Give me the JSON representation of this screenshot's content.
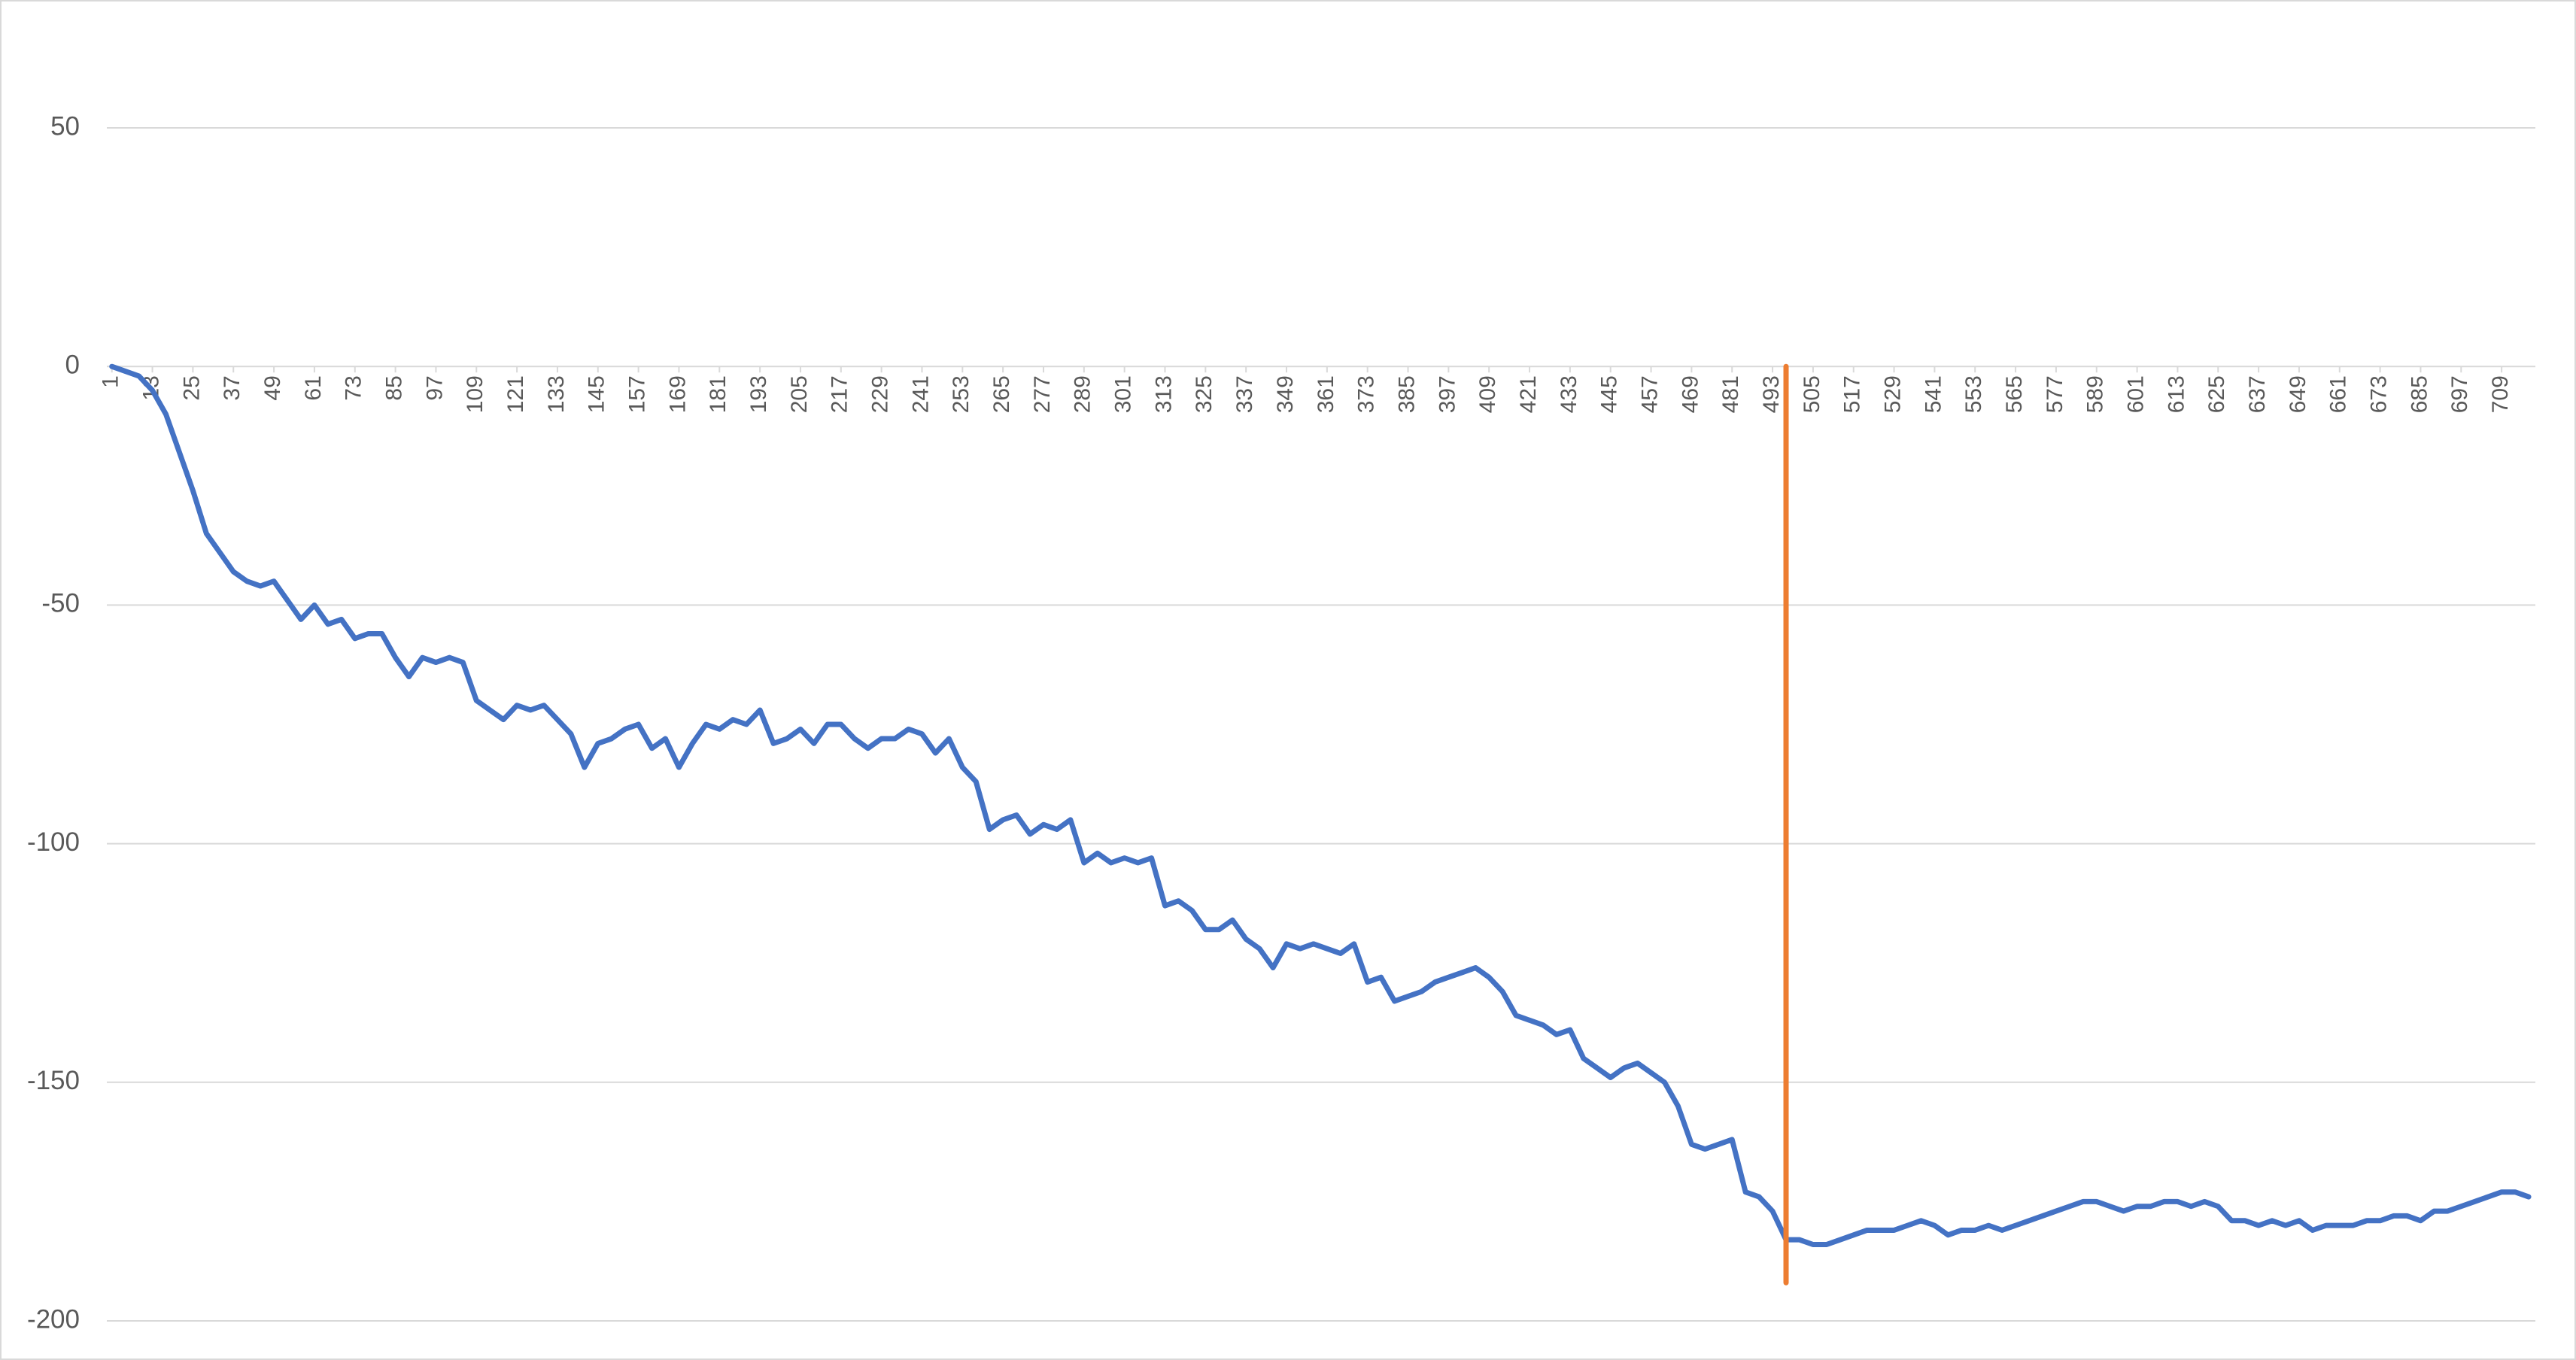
{
  "chart_data": {
    "type": "line",
    "xlim": [
      -0.5,
      719
    ],
    "xticks": [
      1,
      13,
      25,
      37,
      49,
      61,
      73,
      85,
      97,
      109,
      121,
      133,
      145,
      157,
      169,
      181,
      193,
      205,
      217,
      229,
      241,
      253,
      265,
      277,
      289,
      301,
      313,
      325,
      337,
      349,
      361,
      373,
      385,
      397,
      409,
      421,
      433,
      445,
      457,
      469,
      481,
      493,
      505,
      517,
      529,
      541,
      553,
      565,
      577,
      589,
      601,
      613,
      625,
      637,
      649,
      661,
      673,
      685,
      697,
      709
    ],
    "ylim": [
      -200,
      50
    ],
    "yticks": [
      -200,
      -150,
      -100,
      -50,
      0,
      50
    ],
    "grid": true,
    "series": [
      {
        "color": "#4472c4",
        "x": [
          1,
          5,
          9,
          13,
          17,
          21,
          25,
          29,
          33,
          37,
          41,
          45,
          49,
          53,
          57,
          61,
          65,
          69,
          73,
          77,
          81,
          85,
          89,
          93,
          97,
          101,
          105,
          109,
          113,
          117,
          121,
          125,
          129,
          133,
          137,
          141,
          145,
          149,
          153,
          157,
          161,
          165,
          169,
          173,
          177,
          181,
          185,
          189,
          193,
          197,
          201,
          205,
          209,
          213,
          217,
          221,
          225,
          229,
          233,
          237,
          241,
          245,
          249,
          253,
          257,
          261,
          265,
          269,
          273,
          277,
          281,
          285,
          289,
          293,
          297,
          301,
          305,
          309,
          313,
          317,
          321,
          325,
          329,
          333,
          337,
          341,
          345,
          349,
          353,
          357,
          361,
          365,
          369,
          373,
          377,
          381,
          385,
          389,
          393,
          397,
          401,
          405,
          409,
          413,
          417,
          421,
          425,
          429,
          433,
          437,
          441,
          445,
          449,
          453,
          457,
          461,
          465,
          469,
          473,
          477,
          481,
          485,
          489,
          493,
          497,
          501,
          505,
          509,
          513,
          517,
          521,
          525,
          529,
          533,
          537,
          541,
          545,
          549,
          553,
          557,
          561,
          565,
          569,
          573,
          577,
          581,
          585,
          589,
          593,
          597,
          601,
          605,
          609,
          613,
          617,
          621,
          625,
          629,
          633,
          637,
          641,
          645,
          649,
          653,
          657,
          661,
          665,
          669,
          673,
          677,
          681,
          685,
          689,
          693,
          697,
          701,
          705,
          709,
          713,
          717
        ],
        "values": [
          0,
          -1,
          -2,
          -5,
          -10,
          -18,
          -26,
          -35,
          -39,
          -43,
          -45,
          -46,
          -45,
          -49,
          -53,
          -50,
          -54,
          -53,
          -57,
          -56,
          -56,
          -61,
          -65,
          -61,
          -62,
          -61,
          -62,
          -70,
          -72,
          -74,
          -71,
          -72,
          -71,
          -74,
          -77,
          -84,
          -79,
          -78,
          -76,
          -75,
          -80,
          -78,
          -84,
          -79,
          -75,
          -76,
          -74,
          -75,
          -72,
          -79,
          -78,
          -76,
          -79,
          -75,
          -75,
          -78,
          -80,
          -78,
          -78,
          -76,
          -77,
          -81,
          -78,
          -84,
          -87,
          -97,
          -95,
          -94,
          -98,
          -96,
          -97,
          -95,
          -104,
          -102,
          -104,
          -103,
          -104,
          -103,
          -113,
          -112,
          -114,
          -118,
          -118,
          -116,
          -120,
          -122,
          -126,
          -121,
          -122,
          -121,
          -122,
          -123,
          -121,
          -129,
          -128,
          -133,
          -132,
          -131,
          -129,
          -128,
          -127,
          -126,
          -128,
          -131,
          -136,
          -137,
          -138,
          -140,
          -139,
          -145,
          -147,
          -149,
          -147,
          -146,
          -148,
          -150,
          -155,
          -163,
          -164,
          -163,
          -162,
          -173,
          -174,
          -177,
          -183,
          -183,
          -184,
          -184,
          -183,
          -182,
          -181,
          -181,
          -181,
          -180,
          -179,
          -180,
          -182,
          -181,
          -181,
          -180,
          -181,
          -180,
          -179,
          -178,
          -177,
          -176,
          -175,
          -175,
          -176,
          -177,
          -176,
          -176,
          -175,
          -175,
          -176,
          -175,
          -176,
          -179,
          -179,
          -180,
          -179,
          -180,
          -179,
          -181,
          -180,
          -180,
          -180,
          -179,
          -179,
          -178,
          -178,
          -179,
          -177,
          -177,
          -176,
          -175,
          -174,
          -173,
          -173,
          -174
        ]
      },
      {
        "color": "#ed7d31",
        "x": [
          497,
          497
        ],
        "values": [
          0,
          -192
        ]
      }
    ]
  }
}
